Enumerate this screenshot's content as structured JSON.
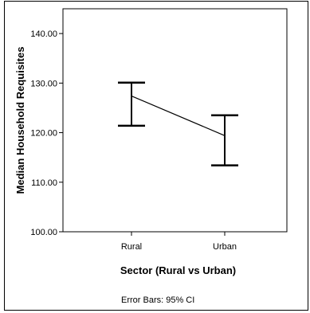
{
  "chart_data": {
    "type": "line",
    "subtype": "error-bar",
    "xlabel": "Sector (Rural vs Urban)",
    "ylabel": "Median Household Requisites",
    "categories": [
      "Rural",
      "Urban"
    ],
    "series": [
      {
        "means": [
          127.4,
          119.4
        ],
        "ci_lower": [
          121.4,
          113.4
        ],
        "ci_upper": [
          130.1,
          123.5
        ]
      }
    ],
    "ylim": [
      100,
      145
    ],
    "yticks": [
      "100.00",
      "110.00",
      "120.00",
      "130.00",
      "140.00"
    ],
    "ytick_values": [
      100,
      110,
      120,
      130,
      140
    ],
    "grid": false,
    "footnote": "Error Bars: 95% CI"
  }
}
